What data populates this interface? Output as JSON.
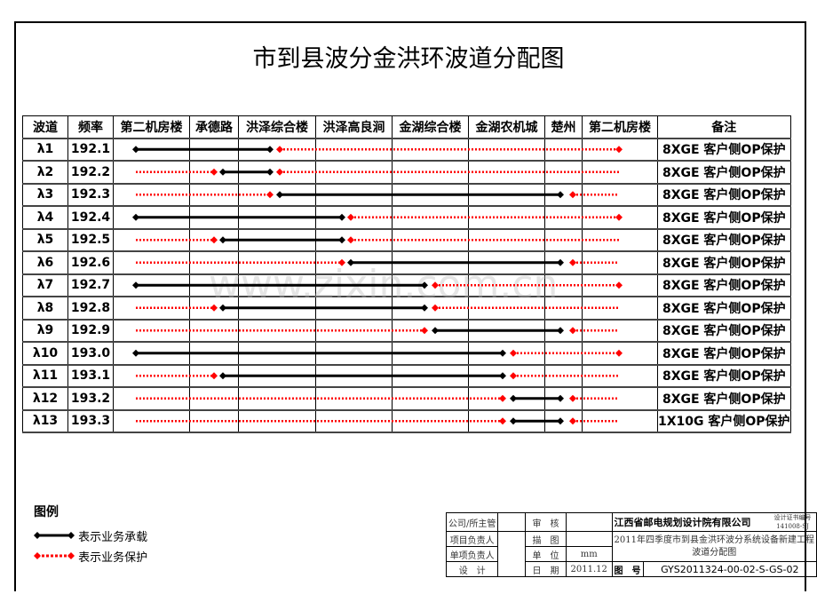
{
  "title": "市到县波分金洪环波道分配图",
  "watermark": "www.zixin.com.cn",
  "headers": [
    "波道",
    "频率",
    "第二机房楼",
    "承德路",
    "洪泽综合楼",
    "洪泽高良涧",
    "金湖综合楼",
    "金湖农机城",
    "楚州",
    "第二机房楼",
    "备注"
  ],
  "rows": [
    {
      "ch": "λ1",
      "freq": "192.1",
      "note": "8XGE 客户侧OP保护",
      "work": [
        0,
        2
      ],
      "protect": [
        [
          2,
          7
        ]
      ]
    },
    {
      "ch": "λ2",
      "freq": "192.2",
      "note": "8XGE 客户侧OP保护",
      "work": [
        1,
        2
      ],
      "protect": [
        [
          0,
          1
        ],
        [
          2,
          7
        ]
      ]
    },
    {
      "ch": "λ3",
      "freq": "192.3",
      "note": "8XGE 客户侧OP保护",
      "work": [
        2,
        6
      ],
      "protect": [
        [
          0,
          2
        ],
        [
          6,
          7
        ]
      ]
    },
    {
      "ch": "λ4",
      "freq": "192.4",
      "note": "8XGE 客户侧OP保护",
      "work": [
        0,
        3
      ],
      "protect": [
        [
          3,
          7
        ]
      ]
    },
    {
      "ch": "λ5",
      "freq": "192.5",
      "note": "8XGE 客户侧OP保护",
      "work": [
        1,
        3
      ],
      "protect": [
        [
          0,
          1
        ],
        [
          3,
          7
        ]
      ]
    },
    {
      "ch": "λ6",
      "freq": "192.6",
      "note": "8XGE 客户侧OP保护",
      "work": [
        3,
        6
      ],
      "protect": [
        [
          0,
          3
        ],
        [
          6,
          7
        ]
      ]
    },
    {
      "ch": "λ7",
      "freq": "192.7",
      "note": "8XGE 客户侧OP保护",
      "work": [
        0,
        4
      ],
      "protect": [
        [
          4,
          7
        ]
      ]
    },
    {
      "ch": "λ8",
      "freq": "192.8",
      "note": "8XGE 客户侧OP保护",
      "work": [
        1,
        4
      ],
      "protect": [
        [
          0,
          1
        ],
        [
          4,
          7
        ]
      ]
    },
    {
      "ch": "λ9",
      "freq": "192.9",
      "note": "8XGE 客户侧OP保护",
      "work": [
        4,
        6
      ],
      "protect": [
        [
          0,
          4
        ],
        [
          6,
          7
        ]
      ]
    },
    {
      "ch": "λ10",
      "freq": "193.0",
      "note": "8XGE 客户侧OP保护",
      "work": [
        0,
        5
      ],
      "protect": [
        [
          5,
          7
        ]
      ]
    },
    {
      "ch": "λ11",
      "freq": "193.1",
      "note": "8XGE 客户侧OP保护",
      "work": [
        1,
        5
      ],
      "protect": [
        [
          0,
          1
        ],
        [
          5,
          7
        ]
      ]
    },
    {
      "ch": "λ12",
      "freq": "193.2",
      "note": "8XGE 客户侧OP保护",
      "work": [
        5,
        6
      ],
      "protect": [
        [
          0,
          5
        ],
        [
          6,
          7
        ]
      ]
    },
    {
      "ch": "λ13",
      "freq": "193.3",
      "note": "1X10G 客户侧OP保护",
      "work": [
        5,
        6
      ],
      "protect": [
        [
          0,
          5
        ],
        [
          6,
          7
        ]
      ]
    }
  ],
  "colors": {
    "work": "#000000",
    "protect": "#ff0000"
  },
  "legend": {
    "title": "图例",
    "work": "表示业务承载",
    "protect": "表示业务保护"
  },
  "titleblock": {
    "r1": [
      "公司/所主管",
      "审　核",
      "江西省邮电规划设计院有限公司",
      "设计证书编号",
      "141008-SJ"
    ],
    "r2": [
      "项目负责人",
      "描　图",
      "2011年四季度市到县金洪环波分系统设备新建工程",
      "波道分配图"
    ],
    "r3": [
      "单项负责人",
      "单　位",
      "mm"
    ],
    "r4": [
      "设　计",
      "日　期",
      "2011.12",
      "图　号",
      "GYS2011324-00-02-S-GS-02"
    ]
  }
}
